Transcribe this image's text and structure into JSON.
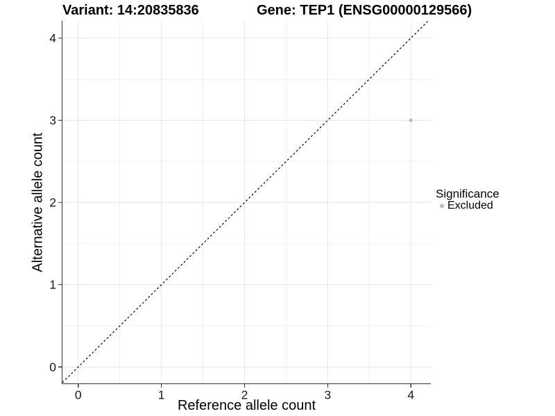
{
  "chart_data": {
    "type": "scatter",
    "titles": [
      "Variant: 14:20835836",
      "Gene: TEP1 (ENSG00000129566)"
    ],
    "xlabel": "Reference allele count",
    "ylabel": "Alternative allele count",
    "xlim": [
      -0.19,
      4.24
    ],
    "ylim": [
      -0.2,
      4.21
    ],
    "xticks": [
      0,
      1,
      2,
      3,
      4
    ],
    "yticks": [
      0,
      1,
      2,
      3,
      4
    ],
    "minor_xticks": [
      0.5,
      1.5,
      2.5,
      3.5
    ],
    "minor_yticks": [
      0.5,
      1.5,
      2.5,
      3.5
    ],
    "grid": "major+minor",
    "legend_position": "right",
    "series": [
      {
        "name": "Excluded",
        "color": "#bcbcbc",
        "points": [
          {
            "x": 4,
            "y": 3
          }
        ]
      }
    ],
    "reference_line": {
      "type": "identity",
      "equation": "y = x",
      "style": "dashed",
      "color": "#000000"
    },
    "colors": {
      "grid_major": "#e4e4e4",
      "grid_minor": "#f0f0f0",
      "axis": "#333333",
      "tick_label": "#1a1a1a",
      "background": "#ffffff"
    }
  },
  "legend": {
    "title": "Significance",
    "items": [
      {
        "label": "Excluded",
        "color": "#bcbcbc"
      }
    ]
  }
}
